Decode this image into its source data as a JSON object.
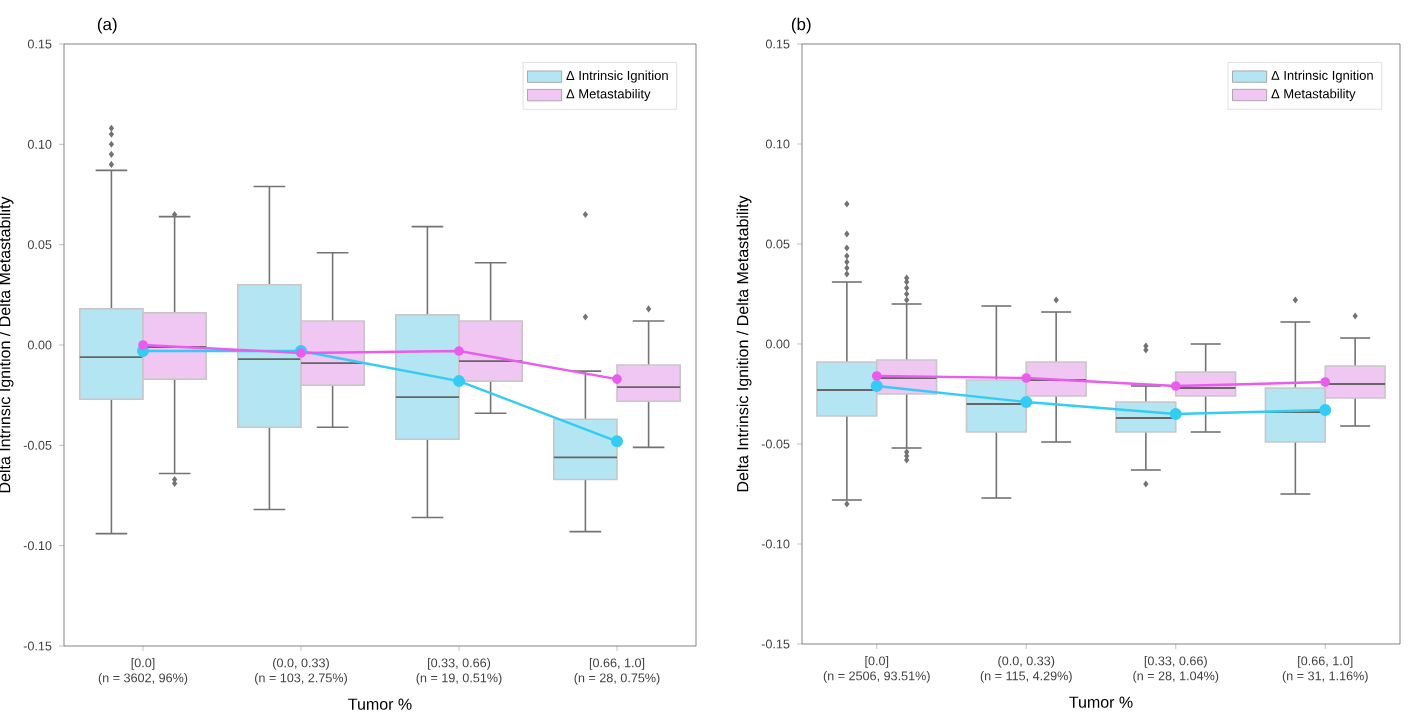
{
  "chart_data": [
    {
      "type": "box",
      "title": "(a)",
      "xlabel": "Tumor %",
      "ylabel": "Delta Intrinsic Ignition / Delta Metastability",
      "legend": "top right",
      "categories": [
        "[0.0]\n(n = 3602, 96%)",
        "(0.0, 0.33)\n(n = 103, 2.75%)",
        "[0.33, 0.66)\n(n = 19, 0.51%)",
        "[0.66, 1.0]\n(n = 28, 0.75%)"
      ],
      "ylim": [
        -0.15,
        0.15
      ],
      "yticks": [
        {
          "value": -0.15,
          "label": "-0.15"
        },
        {
          "value": -0.1,
          "label": "-0.10"
        },
        {
          "value": -0.05,
          "label": "-0.05"
        },
        {
          "value": 0,
          "label": "0.00"
        },
        {
          "value": 0.05,
          "label": "0.05"
        },
        {
          "value": 0.1,
          "label": "0.10"
        },
        {
          "value": 0.15,
          "label": "0.15"
        }
      ],
      "series": [
        {
          "name": "Δ Intrinsic Ignition",
          "color": "#b4e5f3",
          "boxes": [
            {
              "low": -0.094,
              "q1": -0.027,
              "median": -0.006,
              "q3": 0.018,
              "high": 0.087,
              "outliers": [
                0.09,
                0.095,
                0.1,
                0.105,
                0.108
              ]
            },
            {
              "low": -0.082,
              "q1": -0.041,
              "median": -0.007,
              "q3": 0.03,
              "high": 0.079
            },
            {
              "low": -0.086,
              "q1": -0.047,
              "median": -0.026,
              "q3": 0.015,
              "high": 0.059
            },
            {
              "low": -0.093,
              "q1": -0.067,
              "median": -0.056,
              "q3": -0.037,
              "high": -0.013,
              "outliers": [
                0.014,
                0.065
              ]
            }
          ]
        },
        {
          "name": "Δ Metastability",
          "color": "#f0c6f3",
          "boxes": [
            {
              "low": -0.064,
              "q1": -0.017,
              "median": -0.001,
              "q3": 0.016,
              "high": 0.064,
              "outliers": [
                -0.067,
                -0.069,
                0.065
              ]
            },
            {
              "low": -0.041,
              "q1": -0.02,
              "median": -0.009,
              "q3": 0.012,
              "high": 0.046
            },
            {
              "low": -0.034,
              "q1": -0.018,
              "median": -0.008,
              "q3": 0.012,
              "high": 0.041
            },
            {
              "low": -0.051,
              "q1": -0.028,
              "median": -0.021,
              "q3": -0.01,
              "high": 0.012,
              "outliers": [
                0.018
              ]
            }
          ]
        },
        {
          "type": "line",
          "color": "#33ccf5",
          "marker": "circle",
          "values": [
            -0.003,
            -0.003,
            -0.018,
            -0.048
          ]
        },
        {
          "type": "line",
          "color": "#ea5cee",
          "marker": "circle",
          "values": [
            0.0,
            -0.004,
            -0.003,
            -0.017
          ]
        }
      ]
    },
    {
      "type": "box",
      "title": "(b)",
      "xlabel": "Tumor %",
      "ylabel": "Delta Intrinsic Ignition / Delta Metastability",
      "legend": "top right",
      "categories": [
        "[0.0]\n(n = 2506, 93.51%)",
        "(0.0, 0.33)\n(n = 115, 4.29%)",
        "[0.33, 0.66)\n(n = 28, 1.04%)",
        "[0.66, 1.0]\n(n = 31, 1.16%)"
      ],
      "ylim": [
        -0.15,
        0.15
      ],
      "yticks": [
        {
          "value": -0.15,
          "label": "-0.15"
        },
        {
          "value": -0.1,
          "label": "-0.10"
        },
        {
          "value": -0.05,
          "label": "-0.05"
        },
        {
          "value": 0,
          "label": "0.00"
        },
        {
          "value": 0.05,
          "label": "0.05"
        },
        {
          "value": 0.1,
          "label": "0.10"
        },
        {
          "value": 0.15,
          "label": "0.15"
        }
      ],
      "series": [
        {
          "name": "Δ Intrinsic Ignition",
          "color": "#b4e5f3",
          "boxes": [
            {
              "low": -0.078,
              "q1": -0.036,
              "median": -0.023,
              "q3": -0.009,
              "high": 0.031,
              "outliers": [
                0.035,
                0.038,
                0.041,
                0.044,
                0.048,
                0.055,
                0.07,
                -0.08
              ]
            },
            {
              "low": -0.077,
              "q1": -0.044,
              "median": -0.03,
              "q3": -0.018,
              "high": 0.019
            },
            {
              "low": -0.063,
              "q1": -0.044,
              "median": -0.037,
              "q3": -0.029,
              "high": -0.021,
              "outliers": [
                -0.001,
                -0.003,
                -0.07
              ]
            },
            {
              "low": -0.075,
              "q1": -0.049,
              "median": -0.034,
              "q3": -0.022,
              "high": 0.011,
              "outliers": [
                0.022
              ]
            }
          ]
        },
        {
          "name": "Δ Metastability",
          "color": "#f0c6f3",
          "boxes": [
            {
              "low": -0.052,
              "q1": -0.025,
              "median": -0.017,
              "q3": -0.008,
              "high": 0.02,
              "outliers": [
                0.022,
                0.025,
                0.028,
                0.031,
                0.033,
                -0.054,
                -0.056,
                -0.058
              ]
            },
            {
              "low": -0.049,
              "q1": -0.026,
              "median": -0.018,
              "q3": -0.009,
              "high": 0.016,
              "outliers": [
                0.022
              ]
            },
            {
              "low": -0.044,
              "q1": -0.026,
              "median": -0.022,
              "q3": -0.014,
              "high": 0.0
            },
            {
              "low": -0.041,
              "q1": -0.027,
              "median": -0.02,
              "q3": -0.011,
              "high": 0.003,
              "outliers": [
                0.014
              ]
            }
          ]
        },
        {
          "type": "line",
          "color": "#33ccf5",
          "marker": "circle",
          "values": [
            -0.021,
            -0.029,
            -0.035,
            -0.033
          ]
        },
        {
          "type": "line",
          "color": "#ea5cee",
          "marker": "circle",
          "values": [
            -0.016,
            -0.017,
            -0.021,
            -0.019
          ]
        }
      ]
    }
  ]
}
